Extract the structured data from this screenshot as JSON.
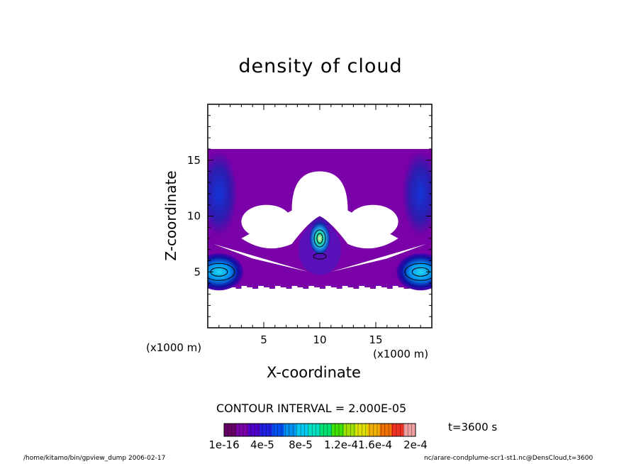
{
  "chart_data": {
    "type": "heatmap",
    "title": "density of cloud",
    "xlabel": "X-coordinate",
    "ylabel": "Z-coordinate",
    "x_unit_label": "(x1000 m)",
    "y_unit_label": "(x1000 m)",
    "xlim": [
      0,
      20
    ],
    "ylim": [
      0,
      20
    ],
    "x_ticks": [
      5,
      10,
      15
    ],
    "y_ticks": [
      5,
      10,
      15
    ],
    "x_tick_labels": [
      "5",
      "10",
      "15"
    ],
    "y_tick_labels": [
      "5",
      "10",
      "15"
    ],
    "cloud_layer_z": [
      4,
      16
    ],
    "cloud_free_regions": [
      {
        "x": [
          7.5,
          12.5
        ],
        "z": [
          10.5,
          14
        ]
      },
      {
        "x": [
          3,
          7.5
        ],
        "z": [
          8,
          11
        ]
      },
      {
        "x": [
          12.5,
          17
        ],
        "z": [
          8,
          11
        ]
      }
    ],
    "maxima": [
      {
        "x": 10,
        "z": 8,
        "value": 0.000128
      },
      {
        "x": 1,
        "z": 5,
        "value": 0.0001
      },
      {
        "x": 19,
        "z": 5,
        "value": 0.0001
      },
      {
        "x": 1,
        "z": 12,
        "value": 6e-05
      },
      {
        "x": 19,
        "z": 12,
        "value": 6e-05
      }
    ],
    "contour_interval_text": "CONTOUR INTERVAL = 2.000E-05",
    "colorbar": {
      "min": 1e-16,
      "max": 0.0002,
      "tick_labels": [
        "1e-16",
        "4e-5",
        "8e-5",
        "1.2e-41.6e-4",
        "2e-4"
      ],
      "colors": [
        "#660066",
        "#7a00a8",
        "#5000c8",
        "#2020e0",
        "#0050f0",
        "#0090f0",
        "#00c8f0",
        "#00e0c0",
        "#00e070",
        "#40e000",
        "#a0e000",
        "#e0e000",
        "#f0b000",
        "#f07000",
        "#f03020",
        "#f0a0a0"
      ]
    }
  },
  "labels": {
    "title": "density of cloud",
    "xlabel": "X-coordinate",
    "ylabel": "Z-coordinate",
    "x_unit_left": "(x1000 m)",
    "x_unit_right": "(x1000 m)",
    "contour": "CONTOUR INTERVAL = 2.000E-05",
    "time": "t=3600 s",
    "footer_left": "/home/kitamo/bin/gpview_dump  2006-02-17",
    "footer_right": "nc/arare-condplume-scr1-st1.nc@DensCloud,t=3600"
  },
  "colors": {
    "cloud_base": "#7a00a8",
    "cloud_edge": "#660066",
    "core_light": "#20c0f0",
    "core_mid": "#0050e0",
    "core_dark": "#101080"
  }
}
